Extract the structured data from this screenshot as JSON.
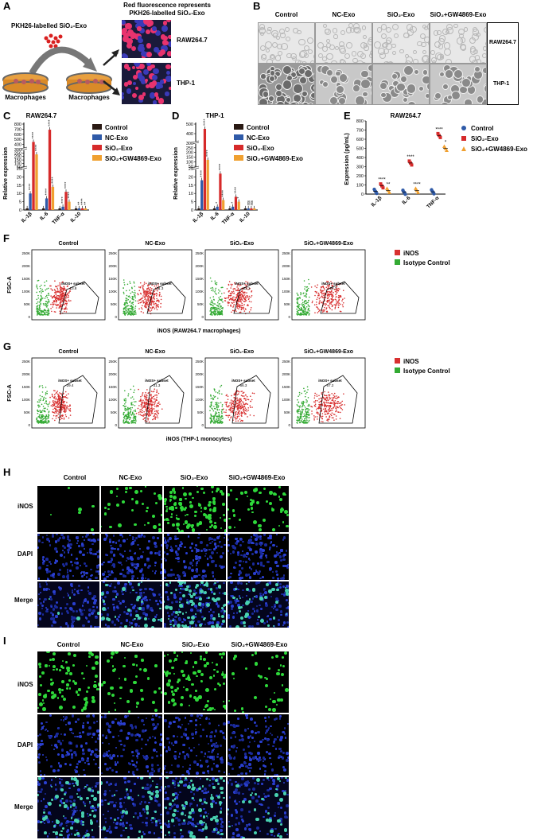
{
  "panel_letters": [
    "A",
    "B",
    "C",
    "D",
    "E",
    "F",
    "G",
    "H",
    "I"
  ],
  "colors": {
    "control": "#2a1a14",
    "nc": "#2f5aa8",
    "sio2": "#d62a2a",
    "gw": "#f0a030",
    "green": "#33aa33",
    "red": "#d83030",
    "blue": "#1b2fb0"
  },
  "panelA": {
    "label_pkh": "PKH26-labelled SiO₂-Exo",
    "macro_left": "Macrophages",
    "macro_right": "Macrophages",
    "red_fluor": "Red fluorescence represents PKH26-labelled SiO₂-Exo",
    "cell_raw": "RAW264.7",
    "cell_thp": "THP-1"
  },
  "panelB": {
    "cols": [
      "Control",
      "NC-Exo",
      "SiO₂-Exo",
      "SiO₂+GW4869-Exo"
    ],
    "rows": [
      "RAW264.7",
      "THP-1"
    ]
  },
  "chart_data": [
    {
      "type": "bar",
      "title": "RAW264.7",
      "ylabel": "Relative expression",
      "categories": [
        "IL-1β",
        "IL-6",
        "TNF-α",
        "IL-10"
      ],
      "ytick_labels": [
        "0",
        "5",
        "10",
        "15",
        "20",
        "25",
        "50",
        "100",
        "150",
        "200",
        "250",
        "300",
        "400",
        "500",
        "600",
        "700",
        "800"
      ],
      "series": [
        {
          "name": "Control",
          "values": [
            1,
            1,
            1,
            1
          ]
        },
        {
          "name": "NC-Exo",
          "values": [
            10,
            7,
            2,
            1
          ]
        },
        {
          "name": "SiO₂-Exo",
          "values": [
            450,
            690,
            11,
            1
          ]
        },
        {
          "name": "SiO₂+GW4869-Exo",
          "values": [
            230,
            14,
            5,
            1
          ]
        }
      ],
      "annotations": [
        "****",
        "****",
        "****",
        "****",
        "****",
        "****",
        "****",
        "****",
        "****",
        "**",
        "****",
        "**",
        "ns",
        "ns",
        "ns"
      ]
    },
    {
      "type": "bar",
      "title": "THP-1",
      "ylabel": "Relative expression",
      "categories": [
        "IL-1β",
        "IL-6",
        "TNF-α",
        "IL-10"
      ],
      "ytick_labels": [
        "0",
        "5",
        "10",
        "15",
        "20",
        "25",
        "50",
        "100",
        "150",
        "200",
        "250",
        "300",
        "400",
        "500"
      ],
      "series": [
        {
          "name": "Control",
          "values": [
            1,
            1,
            1,
            1
          ]
        },
        {
          "name": "NC-Exo",
          "values": [
            18,
            2,
            2,
            1
          ]
        },
        {
          "name": "SiO₂-Exo",
          "values": [
            450,
            22,
            8,
            1
          ]
        },
        {
          "name": "SiO₂+GW4869-Exo",
          "values": [
            120,
            6,
            5,
            1
          ]
        }
      ],
      "annotations": [
        "****",
        "****",
        "****",
        "*",
        "****",
        "****",
        "*",
        "****",
        "*",
        "ns",
        "ns"
      ]
    },
    {
      "type": "scatter",
      "title": "RAW264.7",
      "ylabel": "Expression (pg/mL)",
      "categories": [
        "IL-1β",
        "IL-6",
        "TNF-α"
      ],
      "ytick_labels": [
        "0",
        "100",
        "200",
        "300",
        "400",
        "500",
        "600",
        "700",
        "800"
      ],
      "ylim": [
        0,
        800
      ],
      "series": [
        {
          "name": "Control",
          "values": [
            30,
            20,
            25
          ]
        },
        {
          "name": "SiO₂-Exo",
          "values": [
            90,
            340,
            640
          ]
        },
        {
          "name": "SiO₂+GW4869-Exo",
          "values": [
            40,
            40,
            500
          ]
        }
      ],
      "annotations": [
        "****",
        "**",
        "****",
        "****",
        "****",
        "*"
      ]
    }
  ],
  "flow": {
    "panelF": {
      "cols": [
        "Control",
        "NC-Exo",
        "SiO₂-Exo",
        "SiO₂+GW4869-Exo"
      ],
      "values": [
        "13.8",
        "31.3",
        "63.1",
        "34.7"
      ],
      "subset": "iNOS+ subset",
      "ylabel": "FSC-A",
      "xlabel": "iNOS (RAW264.7 macrophages)",
      "yticks": [
        "250K",
        "200K",
        "150K",
        "100K",
        "50K",
        "0"
      ],
      "legend": [
        "iNOS",
        "Isotype Control"
      ]
    },
    "panelG": {
      "cols": [
        "Control",
        "NC-Exo",
        "SiO₂-Exo",
        "SiO₂+GW4869-Exo"
      ],
      "values": [
        "29.4",
        "31.3",
        "66.3",
        "57.2"
      ],
      "subset": "iNOS+ subset",
      "ylabel": "FSC-A",
      "xlabel": "iNOS (THP-1 monocytes)",
      "yticks": [
        "250K",
        "200K",
        "150K",
        "100K",
        "50K",
        "0"
      ],
      "legend": [
        "iNOS",
        "Isotype Control"
      ]
    }
  },
  "panelH": {
    "cols": [
      "Control",
      "NC-Exo",
      "SiO₂-Exo",
      "SiO₂+GW4869-Exo"
    ],
    "rows": [
      "iNOS",
      "DAPI",
      "Merge"
    ]
  },
  "panelI": {
    "cols": [
      "Control",
      "NC-Exo",
      "SiO₂-Exo",
      "SiO₂+GW4869-Exo"
    ],
    "rows": [
      "iNOS",
      "DAPI",
      "Merge"
    ]
  }
}
